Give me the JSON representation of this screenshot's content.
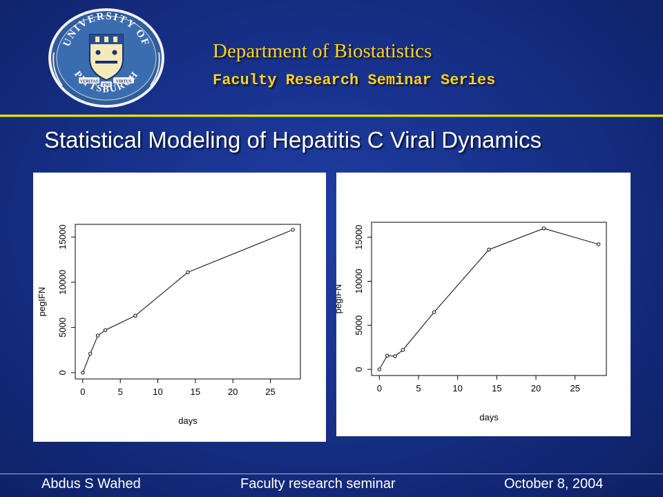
{
  "header": {
    "department": "Department of Biostatistics",
    "series": "Faculty Research Seminar Series",
    "seal": {
      "arc_top": "UNIVERSITY OF",
      "arc_bottom": "PITTSBURGH",
      "motto_left": "VERITAS",
      "motto_center": "1787",
      "motto_right": "VIRTUS"
    }
  },
  "slide_title": "Statistical Modeling of Hepatitis C Viral Dynamics",
  "footer": {
    "author": "Abdus S Wahed",
    "event": "Faculty research seminar",
    "date": "October 8, 2004"
  },
  "colors": {
    "background": "#17318a",
    "accent_yellow": "#ffd21f",
    "rule": "#e8e200"
  },
  "chart_data": [
    {
      "type": "line",
      "xlabel": "days",
      "ylabel": "pegIFN",
      "x": [
        0,
        1,
        2,
        3,
        7,
        14,
        28
      ],
      "y": [
        0,
        2100,
        4100,
        4700,
        6300,
        11100,
        15800
      ],
      "xlim": [
        -1,
        29
      ],
      "ylim": [
        -700,
        16400
      ],
      "xticks": [
        0,
        5,
        10,
        15,
        20,
        25
      ],
      "yticks": [
        0,
        5000,
        10000,
        15000
      ],
      "grid": false,
      "markers": "open-circle"
    },
    {
      "type": "line",
      "xlabel": "days",
      "ylabel": "pegIFN",
      "x": [
        0,
        1,
        2,
        3,
        7,
        14,
        21,
        28
      ],
      "y": [
        0,
        1550,
        1500,
        2200,
        6500,
        13600,
        16000,
        14200
      ],
      "xlim": [
        -1,
        29
      ],
      "ylim": [
        -700,
        16700
      ],
      "xticks": [
        0,
        5,
        10,
        15,
        20,
        25
      ],
      "yticks": [
        0,
        5000,
        10000,
        15000
      ],
      "grid": false,
      "markers": "open-circle"
    }
  ]
}
